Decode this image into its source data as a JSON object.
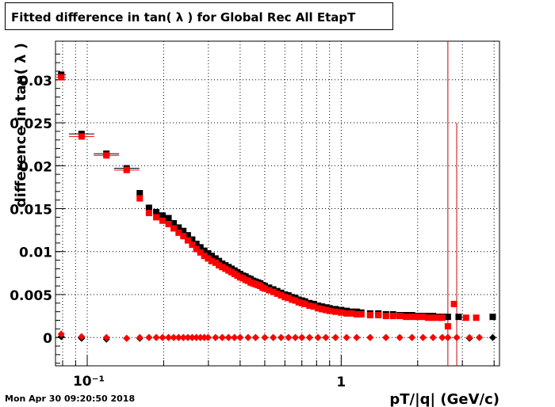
{
  "title": "Fitted difference in tan( λ ) for Global Rec All EtapT",
  "timestamp": "Mon Apr 30 09:20:50 2018",
  "colors": {
    "series_black": "#000000",
    "series_red": "#ff0000",
    "grid": "#000000",
    "vline": "#cc0000"
  },
  "chart_data": {
    "type": "scatter",
    "title": "Fitted difference in tan( λ ) for Global Rec All EtapT",
    "xlabel": "pT/|q| (GeV/c)",
    "ylabel": "difference in tan( λ )",
    "xscale": "log",
    "xlim": [
      0.075,
      4.2
    ],
    "ylim": [
      -0.0033,
      0.0345
    ],
    "grid": true,
    "x_tick_labels": [
      "10⁻¹",
      "1"
    ],
    "y_tick_labels": [
      "0",
      "0.005",
      "0.01",
      "0.015",
      "0.02",
      "0.025",
      "0.03"
    ],
    "y_ticks": [
      0,
      0.005,
      0.01,
      0.015,
      0.02,
      0.025,
      0.03
    ],
    "series": [
      {
        "color": "#000000",
        "marker": "square",
        "points": [
          [
            0.079,
            0.0306
          ],
          [
            0.095,
            0.0237
          ],
          [
            0.119,
            0.0214
          ],
          [
            0.143,
            0.0197
          ],
          [
            0.161,
            0.0168
          ],
          [
            0.175,
            0.0151
          ],
          [
            0.187,
            0.0146
          ],
          [
            0.198,
            0.0142
          ],
          [
            0.209,
            0.0139
          ],
          [
            0.219,
            0.0133
          ],
          [
            0.229,
            0.0128
          ],
          [
            0.239,
            0.0124
          ],
          [
            0.249,
            0.0119
          ],
          [
            0.259,
            0.0114
          ],
          [
            0.269,
            0.0109
          ],
          [
            0.279,
            0.0105
          ],
          [
            0.289,
            0.0101
          ],
          [
            0.299,
            0.0098
          ],
          [
            0.309,
            0.0095
          ],
          [
            0.32,
            0.0092
          ],
          [
            0.33,
            0.0089
          ],
          [
            0.34,
            0.0086
          ],
          [
            0.35,
            0.0084
          ],
          [
            0.36,
            0.0082
          ],
          [
            0.37,
            0.008
          ],
          [
            0.38,
            0.0078
          ],
          [
            0.39,
            0.0076
          ],
          [
            0.4,
            0.0074
          ],
          [
            0.41,
            0.0072
          ],
          [
            0.42,
            0.0071
          ],
          [
            0.43,
            0.0069
          ],
          [
            0.44,
            0.0068
          ],
          [
            0.45,
            0.0066
          ],
          [
            0.46,
            0.0065
          ],
          [
            0.47,
            0.0064
          ],
          [
            0.48,
            0.0063
          ],
          [
            0.49,
            0.0061
          ],
          [
            0.5,
            0.006
          ],
          [
            0.52,
            0.0058
          ],
          [
            0.54,
            0.0056
          ],
          [
            0.56,
            0.0054
          ],
          [
            0.58,
            0.0052
          ],
          [
            0.6,
            0.005
          ],
          [
            0.62,
            0.0049
          ],
          [
            0.64,
            0.0047
          ],
          [
            0.66,
            0.0046
          ],
          [
            0.68,
            0.0044
          ],
          [
            0.7,
            0.0043
          ],
          [
            0.72,
            0.0042
          ],
          [
            0.75,
            0.004
          ],
          [
            0.78,
            0.0039
          ],
          [
            0.81,
            0.0037
          ],
          [
            0.84,
            0.0036
          ],
          [
            0.87,
            0.0035
          ],
          [
            0.9,
            0.0034
          ],
          [
            0.95,
            0.0033
          ],
          [
            1.0,
            0.0032
          ],
          [
            1.05,
            0.0031
          ],
          [
            1.1,
            0.003
          ],
          [
            1.15,
            0.003
          ],
          [
            1.2,
            0.0029
          ],
          [
            1.3,
            0.0028
          ],
          [
            1.4,
            0.0028
          ],
          [
            1.5,
            0.0027
          ],
          [
            1.6,
            0.0027
          ],
          [
            1.7,
            0.0026
          ],
          [
            1.8,
            0.0026
          ],
          [
            1.9,
            0.0026
          ],
          [
            2.0,
            0.0025
          ],
          [
            2.1,
            0.0025
          ],
          [
            2.2,
            0.0025
          ],
          [
            2.3,
            0.0025
          ],
          [
            2.4,
            0.0024
          ],
          [
            2.5,
            0.0024
          ],
          [
            2.63,
            0.0024
          ],
          [
            2.9,
            0.0024
          ],
          [
            3.95,
            0.0024
          ]
        ]
      },
      {
        "color": "#ff0000",
        "marker": "square",
        "points": [
          [
            0.079,
            0.0303
          ],
          [
            0.095,
            0.0234
          ],
          [
            0.119,
            0.0212
          ],
          [
            0.143,
            0.0195
          ],
          [
            0.161,
            0.0162
          ],
          [
            0.175,
            0.0145
          ],
          [
            0.187,
            0.014
          ],
          [
            0.198,
            0.0136
          ],
          [
            0.209,
            0.0132
          ],
          [
            0.219,
            0.0127
          ],
          [
            0.229,
            0.0122
          ],
          [
            0.239,
            0.0118
          ],
          [
            0.249,
            0.0113
          ],
          [
            0.259,
            0.0108
          ],
          [
            0.269,
            0.0103
          ],
          [
            0.279,
            0.0099
          ],
          [
            0.289,
            0.0095
          ],
          [
            0.299,
            0.0092
          ],
          [
            0.309,
            0.0089
          ],
          [
            0.32,
            0.0087
          ],
          [
            0.33,
            0.0084
          ],
          [
            0.34,
            0.0082
          ],
          [
            0.35,
            0.008
          ],
          [
            0.36,
            0.0078
          ],
          [
            0.37,
            0.0076
          ],
          [
            0.38,
            0.0074
          ],
          [
            0.39,
            0.0072
          ],
          [
            0.4,
            0.007
          ],
          [
            0.41,
            0.0069
          ],
          [
            0.42,
            0.0067
          ],
          [
            0.43,
            0.0066
          ],
          [
            0.44,
            0.0064
          ],
          [
            0.45,
            0.0063
          ],
          [
            0.46,
            0.0062
          ],
          [
            0.47,
            0.0061
          ],
          [
            0.48,
            0.006
          ],
          [
            0.49,
            0.0058
          ],
          [
            0.5,
            0.0057
          ],
          [
            0.52,
            0.0055
          ],
          [
            0.54,
            0.0053
          ],
          [
            0.56,
            0.0051
          ],
          [
            0.58,
            0.0049
          ],
          [
            0.6,
            0.0047
          ],
          [
            0.62,
            0.0046
          ],
          [
            0.64,
            0.0044
          ],
          [
            0.66,
            0.0043
          ],
          [
            0.68,
            0.0041
          ],
          [
            0.7,
            0.004
          ],
          [
            0.72,
            0.0039
          ],
          [
            0.75,
            0.0037
          ],
          [
            0.78,
            0.0036
          ],
          [
            0.81,
            0.0034
          ],
          [
            0.84,
            0.0033
          ],
          [
            0.87,
            0.0032
          ],
          [
            0.9,
            0.0031
          ],
          [
            0.95,
            0.003
          ],
          [
            1.0,
            0.0029
          ],
          [
            1.05,
            0.0028
          ],
          [
            1.1,
            0.0028
          ],
          [
            1.15,
            0.0027
          ],
          [
            1.2,
            0.0027
          ],
          [
            1.3,
            0.0026
          ],
          [
            1.4,
            0.0026
          ],
          [
            1.5,
            0.0025
          ],
          [
            1.6,
            0.0025
          ],
          [
            1.7,
            0.0025
          ],
          [
            1.8,
            0.0024
          ],
          [
            1.9,
            0.0024
          ],
          [
            2.0,
            0.0024
          ],
          [
            2.1,
            0.0024
          ],
          [
            2.2,
            0.0023
          ],
          [
            2.3,
            0.0023
          ],
          [
            2.4,
            0.0023
          ],
          [
            2.5,
            0.0023
          ],
          [
            2.63,
            0.0013
          ],
          [
            2.78,
            0.0039
          ],
          [
            3.1,
            0.0023
          ],
          [
            3.4,
            0.0023
          ]
        ]
      },
      {
        "color": "#000000",
        "marker": "diamond",
        "points": [
          [
            0.079,
            0.0001
          ],
          [
            0.095,
            -0.0001
          ],
          [
            0.119,
            -0.0002
          ],
          [
            0.143,
            -0.0001
          ],
          [
            0.161,
            -0.0001
          ],
          [
            0.175,
            0.0
          ],
          [
            0.187,
            0.0
          ],
          [
            0.198,
            0.0
          ],
          [
            0.209,
            0.0
          ],
          [
            0.219,
            0.0
          ],
          [
            0.229,
            0.0
          ],
          [
            0.239,
            0.0
          ],
          [
            0.249,
            0.0
          ],
          [
            0.259,
            0.0
          ],
          [
            0.269,
            0.0
          ],
          [
            0.279,
            0.0
          ],
          [
            0.289,
            0.0
          ],
          [
            0.299,
            0.0
          ],
          [
            0.32,
            0.0
          ],
          [
            0.34,
            0.0
          ],
          [
            0.36,
            0.0
          ],
          [
            0.38,
            0.0
          ],
          [
            0.4,
            0.0
          ],
          [
            0.43,
            0.0
          ],
          [
            0.46,
            0.0
          ],
          [
            0.5,
            0.0
          ],
          [
            0.54,
            0.0
          ],
          [
            0.58,
            0.0
          ],
          [
            0.62,
            0.0
          ],
          [
            0.66,
            0.0
          ],
          [
            0.7,
            0.0
          ],
          [
            0.75,
            0.0
          ],
          [
            0.81,
            0.0
          ],
          [
            0.87,
            0.0
          ],
          [
            0.95,
            0.0
          ],
          [
            1.05,
            0.0
          ],
          [
            1.15,
            0.0
          ],
          [
            1.3,
            0.0
          ],
          [
            1.5,
            0.0
          ],
          [
            1.7,
            0.0
          ],
          [
            1.9,
            0.0
          ],
          [
            2.1,
            0.0
          ],
          [
            2.3,
            0.0
          ],
          [
            2.5,
            0.0
          ],
          [
            2.63,
            0.0
          ],
          [
            2.85,
            0.0
          ],
          [
            3.2,
            -0.0001
          ],
          [
            3.5,
            0.0
          ],
          [
            3.95,
            0.0
          ]
        ]
      },
      {
        "color": "#ff0000",
        "marker": "diamond",
        "points": [
          [
            0.079,
            0.0004
          ],
          [
            0.095,
            0.0001
          ],
          [
            0.119,
            0.0
          ],
          [
            0.143,
            -0.0001
          ],
          [
            0.161,
            0.0
          ],
          [
            0.175,
            0.0
          ],
          [
            0.187,
            0.0
          ],
          [
            0.198,
            0.0
          ],
          [
            0.209,
            0.0
          ],
          [
            0.219,
            0.0
          ],
          [
            0.229,
            0.0
          ],
          [
            0.239,
            0.0
          ],
          [
            0.249,
            0.0
          ],
          [
            0.259,
            0.0
          ],
          [
            0.269,
            0.0
          ],
          [
            0.279,
            0.0
          ],
          [
            0.289,
            0.0
          ],
          [
            0.299,
            0.0
          ],
          [
            0.32,
            0.0
          ],
          [
            0.34,
            0.0
          ],
          [
            0.36,
            0.0
          ],
          [
            0.38,
            0.0
          ],
          [
            0.4,
            0.0
          ],
          [
            0.43,
            0.0
          ],
          [
            0.46,
            0.0
          ],
          [
            0.5,
            0.0
          ],
          [
            0.54,
            0.0
          ],
          [
            0.58,
            0.0
          ],
          [
            0.62,
            0.0
          ],
          [
            0.66,
            0.0
          ],
          [
            0.7,
            0.0
          ],
          [
            0.75,
            0.0
          ],
          [
            0.81,
            0.0
          ],
          [
            0.87,
            0.0
          ],
          [
            0.95,
            0.0
          ],
          [
            1.05,
            0.0
          ],
          [
            1.15,
            0.0
          ],
          [
            1.3,
            0.0
          ],
          [
            1.5,
            0.0
          ],
          [
            1.7,
            0.0
          ],
          [
            1.9,
            0.0
          ],
          [
            2.1,
            0.0
          ],
          [
            2.3,
            0.0
          ],
          [
            2.5,
            0.0
          ],
          [
            2.63,
            0.0
          ],
          [
            2.85,
            0.0
          ],
          [
            3.2,
            0.0
          ],
          [
            3.5,
            0.0
          ]
        ]
      }
    ],
    "error_bars": [
      {
        "x": 2.63,
        "color": "#cc0000",
        "ymin": -0.0033,
        "ymax": 0.0345
      },
      {
        "x": 2.85,
        "color": "#cc0000",
        "ymin": -0.0033,
        "ymax": 0.025
      }
    ]
  }
}
